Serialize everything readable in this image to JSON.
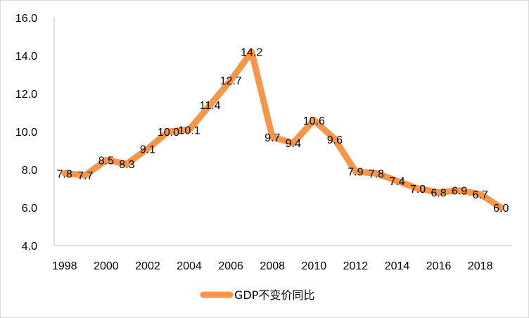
{
  "chart_data": {
    "type": "line",
    "title": "",
    "xlabel": "",
    "ylabel": "",
    "x": [
      1998,
      1999,
      2000,
      2001,
      2002,
      2003,
      2004,
      2005,
      2006,
      2007,
      2008,
      2009,
      2010,
      2011,
      2012,
      2013,
      2014,
      2015,
      2016,
      2017,
      2018,
      2019
    ],
    "x_tick_labels": [
      "1998",
      "2000",
      "2002",
      "2004",
      "2006",
      "2008",
      "2010",
      "2012",
      "2014",
      "2016",
      "2018"
    ],
    "ylim": [
      4.0,
      16.0
    ],
    "y_tick_labels": [
      "4.0",
      "6.0",
      "8.0",
      "10.0",
      "12.0",
      "14.0",
      "16.0"
    ],
    "grid": false,
    "legend_position": "bottom",
    "series": [
      {
        "name": "GDP不变价同比",
        "color": "#f79646",
        "values": [
          7.8,
          7.7,
          8.5,
          8.3,
          9.1,
          10.0,
          10.1,
          11.4,
          12.7,
          14.2,
          9.7,
          9.4,
          10.6,
          9.6,
          7.9,
          7.8,
          7.4,
          7.0,
          6.8,
          6.9,
          6.7,
          6.0
        ],
        "data_labels": [
          "7.8",
          "7.7",
          "8.5",
          "8.3",
          "9.1",
          "10.0",
          "10.1",
          "11.4",
          "12.7",
          "14.2",
          "9.7",
          "9.4",
          "10.6",
          "9.6",
          "7.9",
          "7.8",
          "7.4",
          "7.0",
          "6.8",
          "6.9",
          "6.7",
          "6.0"
        ]
      }
    ]
  }
}
